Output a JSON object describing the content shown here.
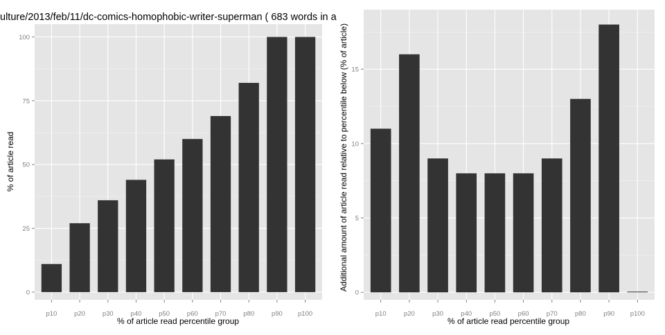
{
  "chart_data": [
    {
      "type": "bar",
      "title": "ulture/2013/feb/11/dc-comics-homophobic-writer-superman ( 683 words in a",
      "xlabel": "% of article read percentile group",
      "ylabel": "% of article read",
      "categories": [
        "p10",
        "p20",
        "p30",
        "p40",
        "p50",
        "p60",
        "p70",
        "p80",
        "p90",
        "p100"
      ],
      "values": [
        11,
        27,
        36,
        44,
        52,
        60,
        69,
        82,
        100,
        100
      ],
      "ylim": [
        -3,
        105
      ],
      "yticks": [
        0,
        25,
        50,
        75,
        100
      ],
      "grid": true,
      "bar_color": "#333333",
      "panel_color": "#e5e5e5"
    },
    {
      "type": "bar",
      "title": "",
      "xlabel": "% of article read percentile group",
      "ylabel": "Additional amount of article read relative to percentile below (% of article)",
      "categories": [
        "p10",
        "p20",
        "p30",
        "p40",
        "p50",
        "p60",
        "p70",
        "p80",
        "p90",
        "p100"
      ],
      "values": [
        11,
        16,
        9,
        8,
        8,
        8,
        9,
        13,
        18,
        0
      ],
      "ylim": [
        -0.5,
        19
      ],
      "yticks": [
        0,
        5,
        10,
        15
      ],
      "grid": true,
      "bar_color": "#333333",
      "panel_color": "#e5e5e5"
    }
  ]
}
